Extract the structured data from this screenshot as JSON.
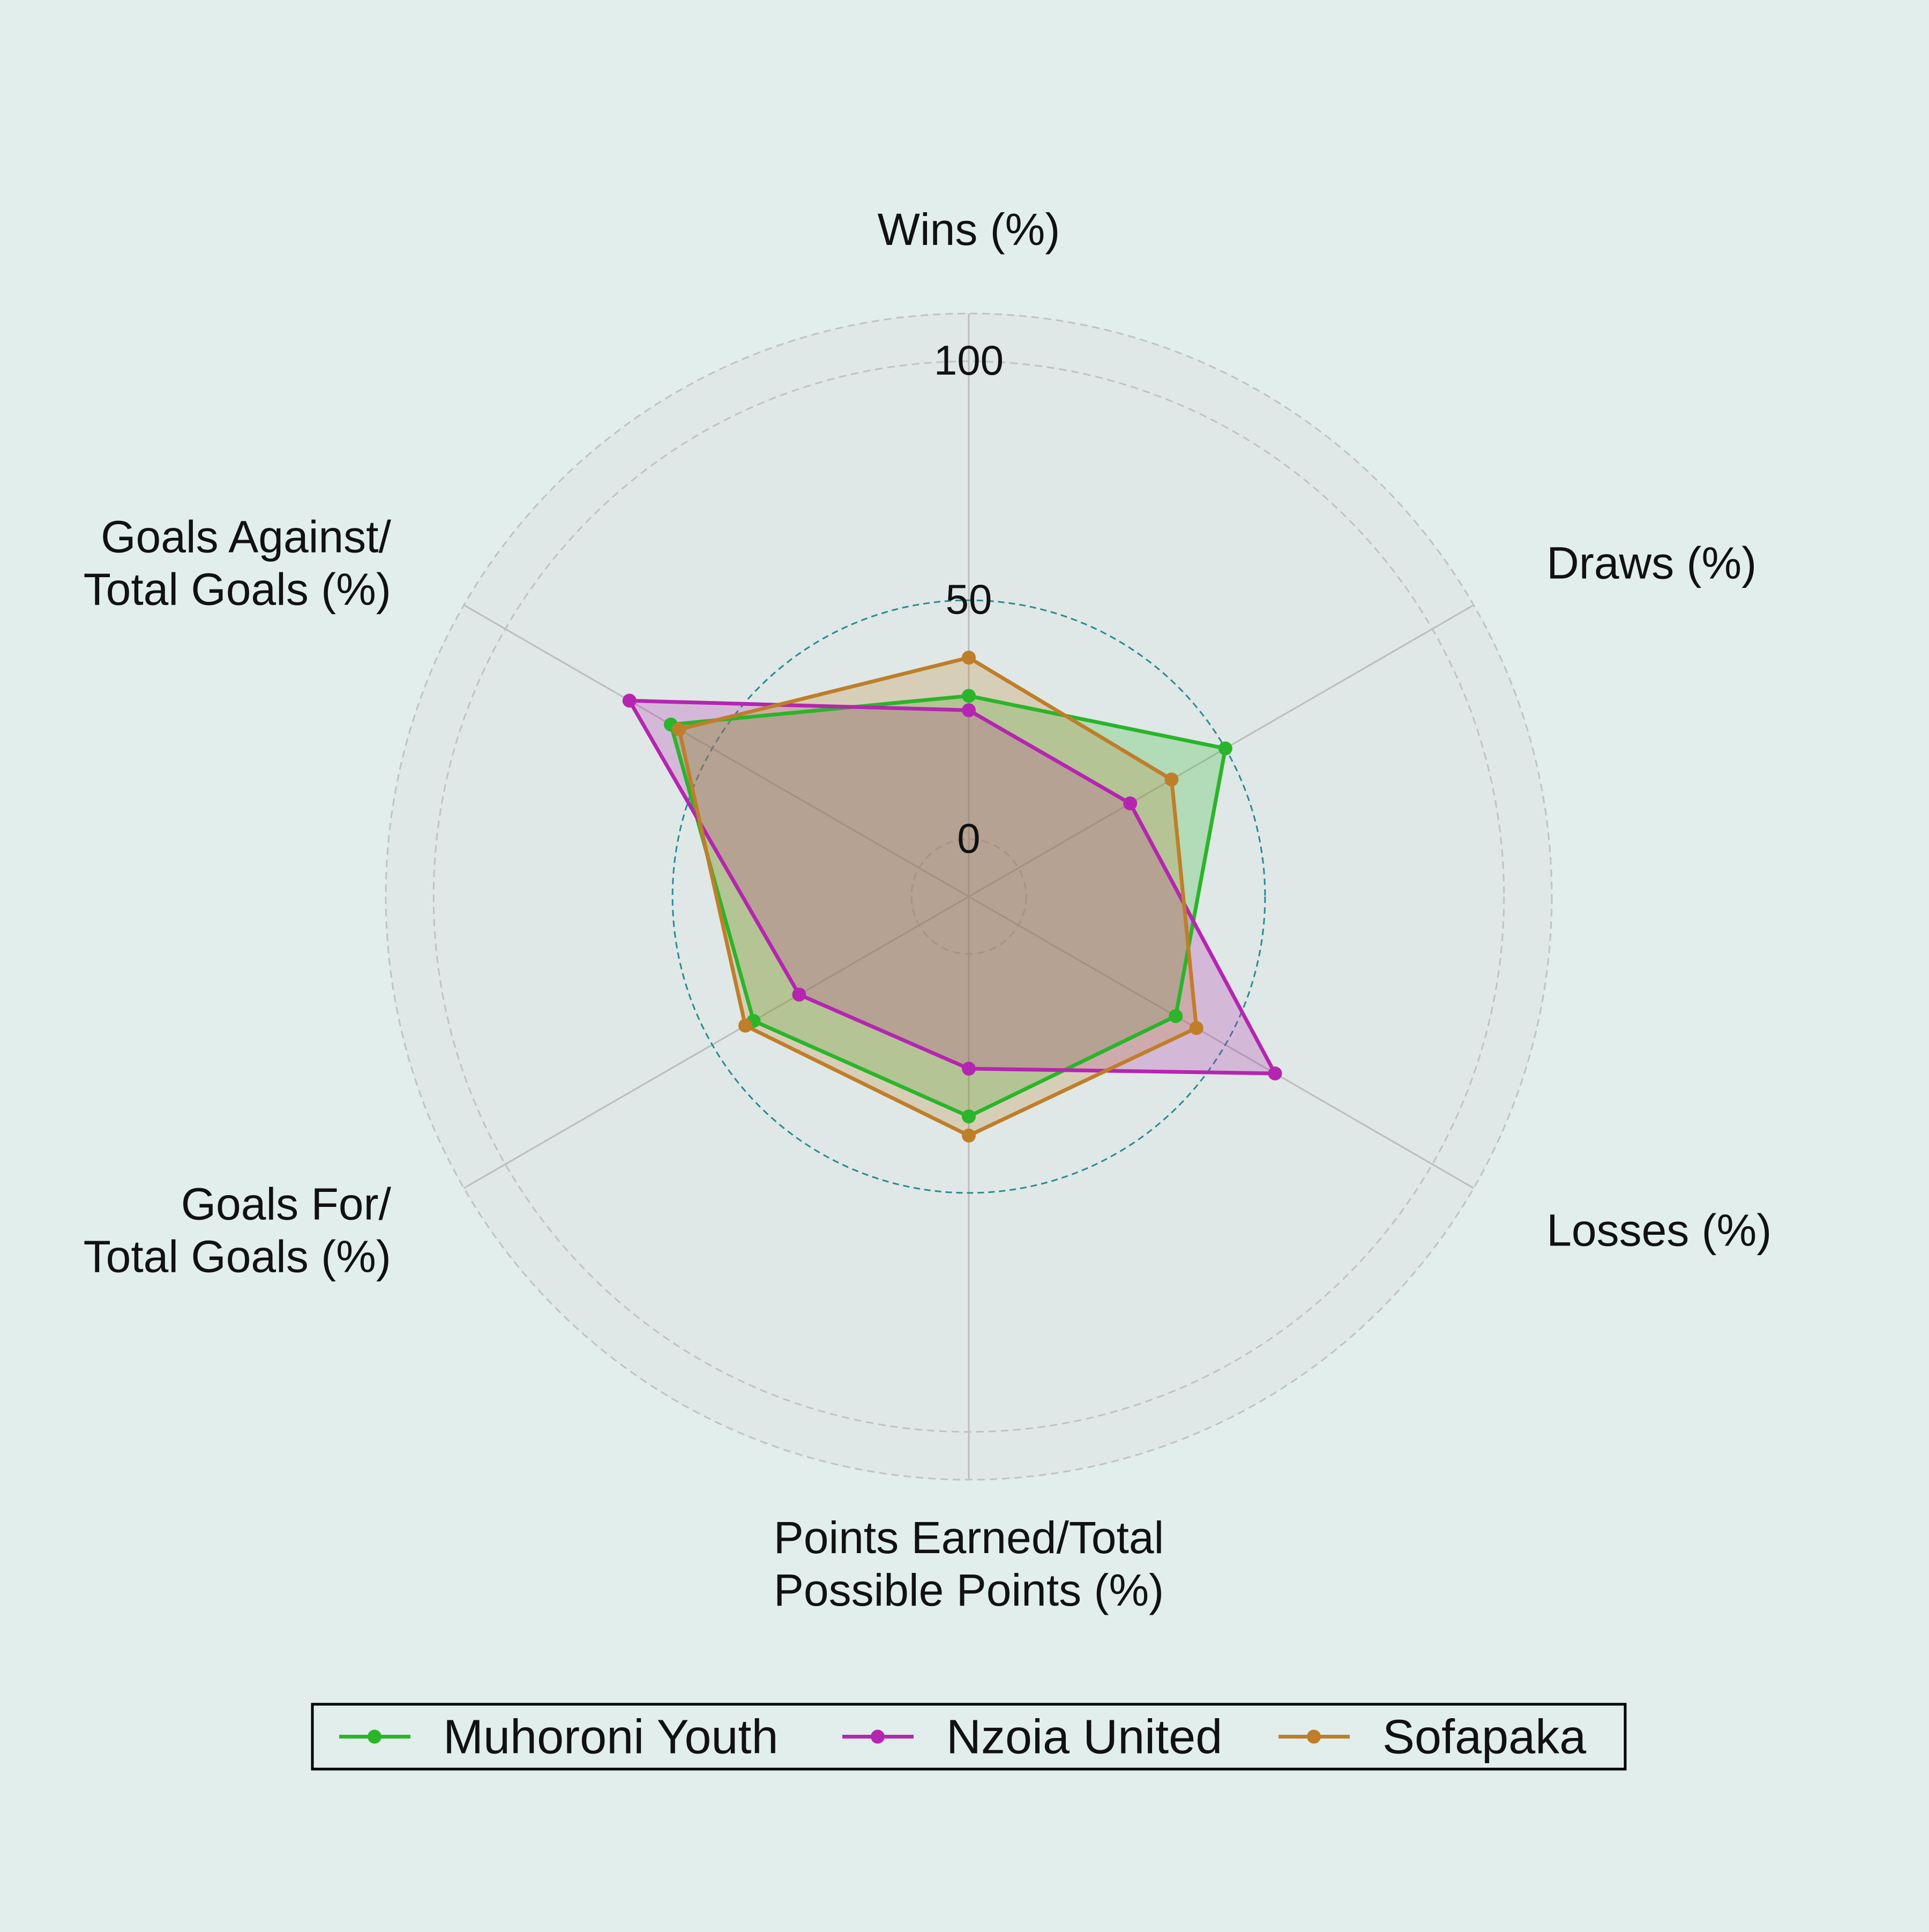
{
  "chart_data": {
    "type": "radar",
    "axes": [
      [
        "Wins (%)"
      ],
      [
        "Draws (%)"
      ],
      [
        "Losses (%)"
      ],
      [
        "Points Earned/Total",
        "Possible Points (%)"
      ],
      [
        "Goals For/",
        "Total Goals (%)"
      ],
      [
        "Goals Against/",
        "Total Goals (%)"
      ]
    ],
    "radial_range": [
      -12,
      110
    ],
    "radial_tick_labels": [
      "0",
      "50",
      "100"
    ],
    "radial_tick_values": [
      0,
      50,
      100
    ],
    "grid": true,
    "legend_placement": "bottom",
    "series": [
      {
        "name": "Muhoroni Youth",
        "color": "#2ab52a",
        "values": [
          30,
          50,
          38,
          34,
          40,
          60
        ]
      },
      {
        "name": "Nzoia United",
        "color": "#b526b0",
        "values": [
          27,
          27,
          62,
          24,
          29,
          70
        ]
      },
      {
        "name": "Sofapaka",
        "color": "#bf7e2a",
        "values": [
          38,
          37,
          43,
          38,
          42,
          58
        ]
      }
    ]
  }
}
